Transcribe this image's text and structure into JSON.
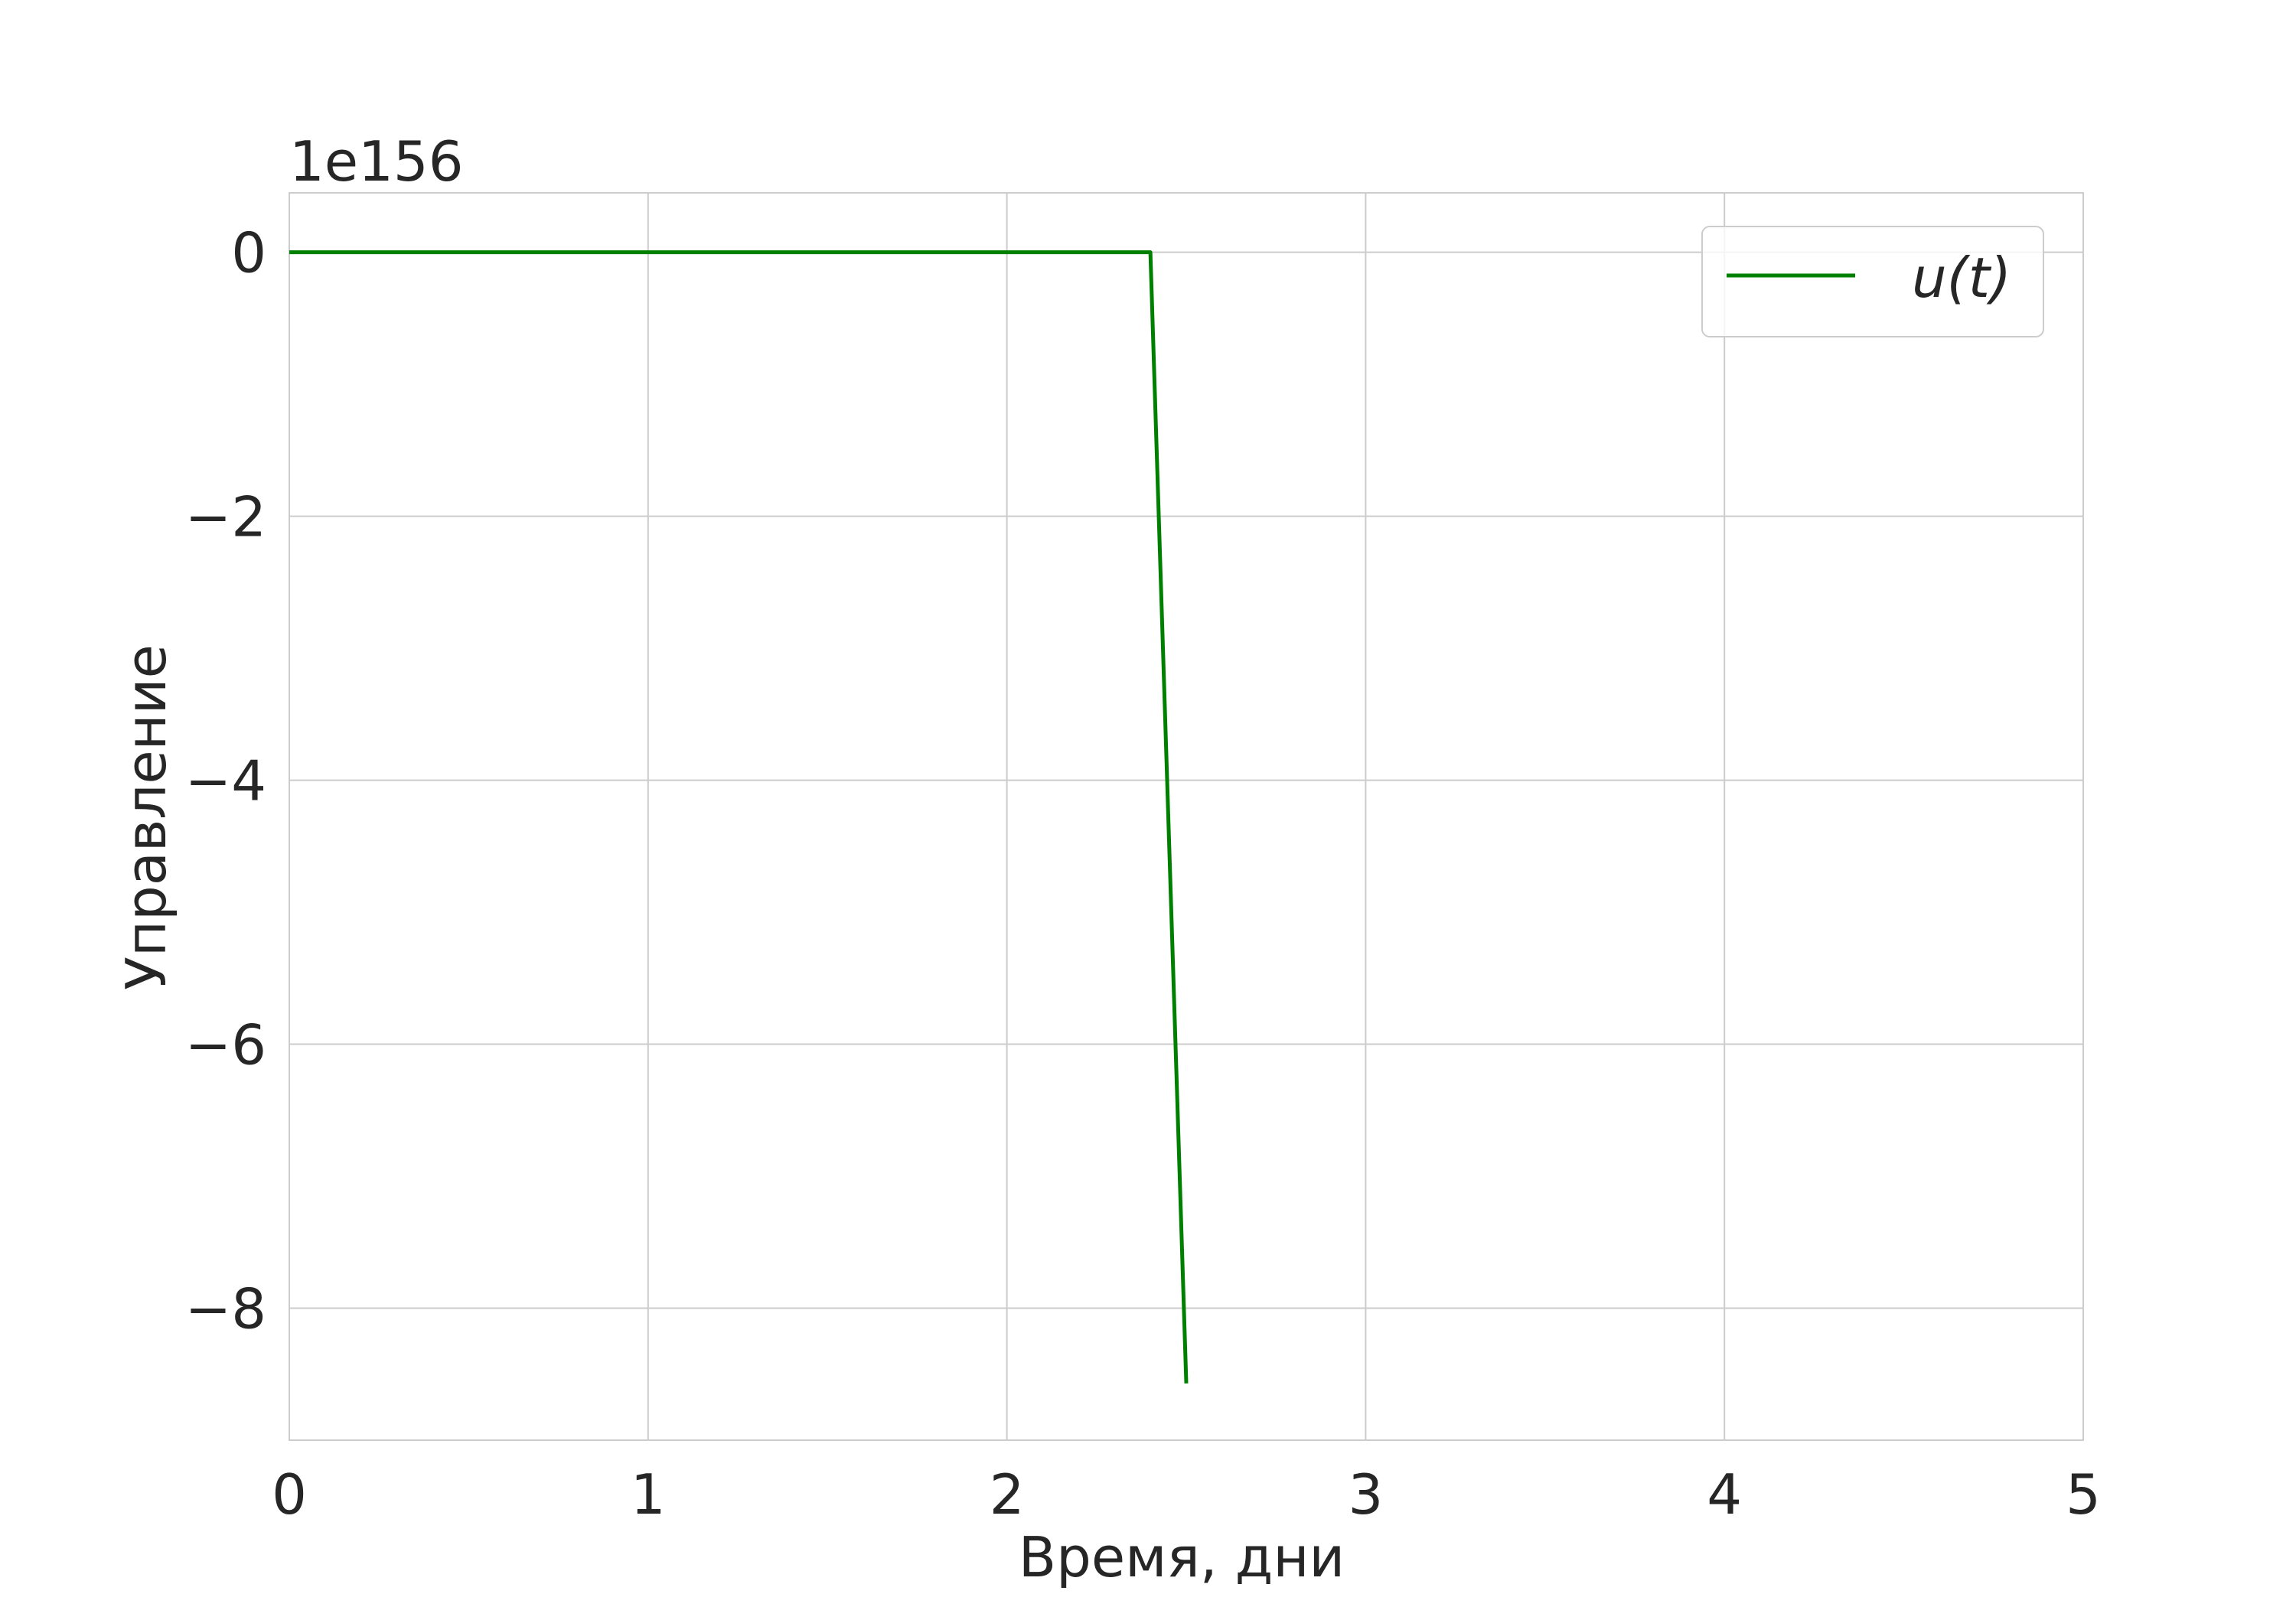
{
  "chart_data": {
    "type": "line",
    "xlabel": "Время, дни",
    "ylabel": "Управление",
    "offset_label": "1e156",
    "xlim": [
      0,
      5
    ],
    "ylim": [
      -9.0,
      0.45
    ],
    "x_ticks": [
      0,
      1,
      2,
      3,
      4,
      5
    ],
    "x_tick_labels": [
      "0",
      "1",
      "2",
      "3",
      "4",
      "5"
    ],
    "y_ticks": [
      0,
      -2,
      -4,
      -6,
      -8
    ],
    "y_tick_labels": [
      "0",
      "−2",
      "−4",
      "−6",
      "−8"
    ],
    "grid": true,
    "legend_position": "top-right",
    "series": [
      {
        "name": "u(t)",
        "color": "#008000",
        "x": [
          0,
          0.5,
          1.0,
          1.5,
          2.0,
          2.4,
          2.5
        ],
        "y": [
          0,
          0,
          0,
          0,
          0,
          0,
          -8.57
        ]
      }
    ]
  }
}
